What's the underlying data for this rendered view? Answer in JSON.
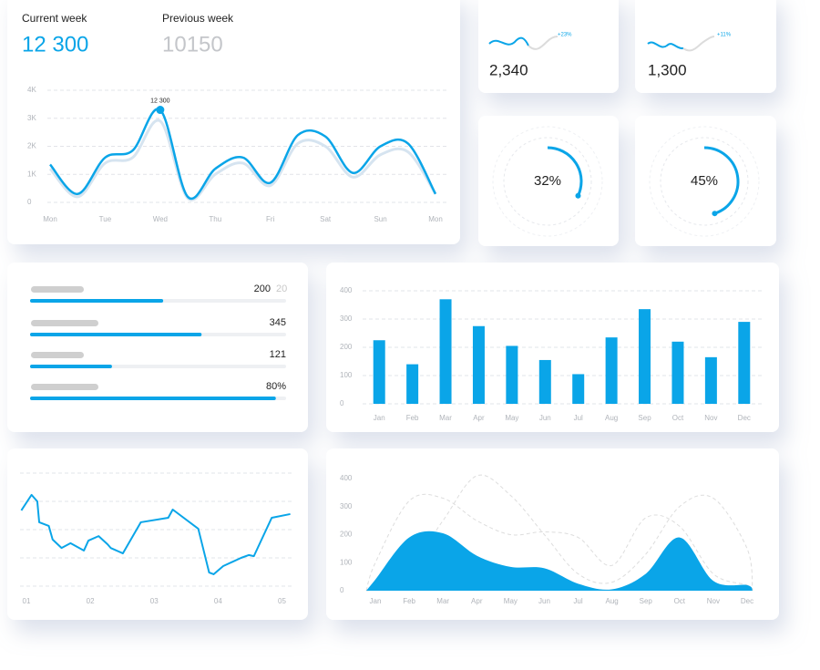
{
  "week_card": {
    "current_label": "Current week",
    "current_value": "12 300",
    "previous_label": "Previous week",
    "previous_value": "10150"
  },
  "kpis": [
    {
      "value": "2,340",
      "change": "+23%"
    },
    {
      "value": "1,300",
      "change": "+11%"
    }
  ],
  "progress": [
    {
      "text": "200",
      "note": "20",
      "percent": 52
    },
    {
      "text": "345",
      "percent": 67
    },
    {
      "text": "121",
      "percent": 32
    },
    {
      "text": "80%",
      "percent": 96
    }
  ],
  "chart_data": [
    {
      "type": "line",
      "smooth": true,
      "categories": [
        "Mon",
        null,
        "Tue",
        null,
        "Wed",
        null,
        "Thu",
        null,
        "Fri",
        null,
        "Sat",
        null,
        "Sun",
        null,
        "Mon"
      ],
      "series": [
        {
          "color": "#0aa5e8",
          "values": [
            1.35,
            0.3,
            1.6,
            1.85,
            3.3,
            0.2,
            1.2,
            1.6,
            0.7,
            2.4,
            2.35,
            1.05,
            2.0,
            2.1,
            0.3
          ]
        },
        {
          "color": "#d6e4f0",
          "values": [
            1.2,
            0.2,
            1.4,
            1.6,
            2.9,
            0.15,
            1.0,
            1.4,
            0.6,
            2.1,
            2.0,
            0.9,
            1.7,
            1.8,
            0.3
          ]
        }
      ],
      "ylim": [
        0,
        4
      ],
      "yticks": [
        0,
        {
          "value": 1,
          "label": "1K"
        },
        {
          "value": 2,
          "label": "2K"
        },
        {
          "value": 3,
          "label": "3K"
        },
        {
          "value": 4,
          "label": "4K"
        }
      ],
      "grid": true,
      "annotation": "12 300"
    },
    {
      "type": "donut",
      "values": [
        32
      ],
      "value_labels": [
        "32%"
      ],
      "color": "#0aa5e8"
    },
    {
      "type": "donut",
      "values": [
        45
      ],
      "value_labels": [
        "45%"
      ],
      "color": "#0aa5e8"
    },
    {
      "type": "bar",
      "categories": [
        "Jan",
        "Feb",
        "Mar",
        "Apr",
        "May",
        "Jun",
        "Jul",
        "Aug",
        "Sep",
        "Oct",
        "Nov",
        "Dec"
      ],
      "values": [
        225,
        140,
        370,
        275,
        205,
        155,
        105,
        235,
        335,
        220,
        165,
        290
      ],
      "color": "#0aa5e8",
      "ylim": [
        0,
        400
      ],
      "yticks": [
        0,
        100,
        200,
        300,
        400
      ],
      "grid": true
    },
    {
      "type": "xyline",
      "color": "#0aa5e8",
      "x": [
        0.92,
        1.08,
        1.17,
        1.2,
        1.35,
        1.41,
        1.55,
        1.69,
        1.9,
        1.97,
        2.13,
        2.27,
        2.32,
        2.51,
        2.79,
        3.22,
        3.29,
        3.69,
        3.86,
        3.93,
        4.08,
        4.36,
        4.48,
        4.56,
        4.84,
        5.13
      ],
      "values": [
        2.68,
        3.23,
        3.0,
        2.26,
        2.13,
        1.65,
        1.35,
        1.52,
        1.26,
        1.61,
        1.77,
        1.48,
        1.35,
        1.16,
        2.26,
        2.42,
        2.71,
        2.03,
        0.48,
        0.42,
        0.71,
        1.0,
        1.1,
        1.06,
        2.42,
        2.55
      ],
      "xlim": [
        0.9,
        5.15
      ],
      "xticks": [
        {
          "value": 1,
          "label": "01"
        },
        {
          "value": 2,
          "label": "02"
        },
        {
          "value": 3,
          "label": "03"
        },
        {
          "value": 4,
          "label": "04"
        },
        {
          "value": 5,
          "label": "05"
        }
      ],
      "ylim": [
        0,
        4
      ],
      "yticks": [
        0,
        1,
        2,
        3,
        4
      ],
      "grid": true
    },
    {
      "type": "area",
      "categories": [
        "Jan",
        "Feb",
        "Mar",
        "Apr",
        "May",
        "Jun",
        "Jul",
        "Aug",
        "Sep",
        "Oct",
        "Nov",
        "Dec"
      ],
      "series": [
        {
          "color": "#dddddd",
          "style": "dashed",
          "values": [
            100,
            320,
            330,
            250,
            200,
            210,
            190,
            90,
            260,
            230,
            60,
            20
          ]
        },
        {
          "color": "#dddddd",
          "style": "dashed",
          "values": [
            10,
            80,
            250,
            410,
            340,
            200,
            60,
            30,
            130,
            300,
            330,
            150
          ]
        },
        {
          "color": "#0aa5e8",
          "style": "filled",
          "values": [
            40,
            190,
            205,
            125,
            85,
            80,
            25,
            5,
            60,
            190,
            35,
            20
          ]
        }
      ],
      "ylim": [
        0,
        400
      ],
      "yticks": [
        0,
        100,
        200,
        300,
        400
      ],
      "grid": false
    }
  ]
}
